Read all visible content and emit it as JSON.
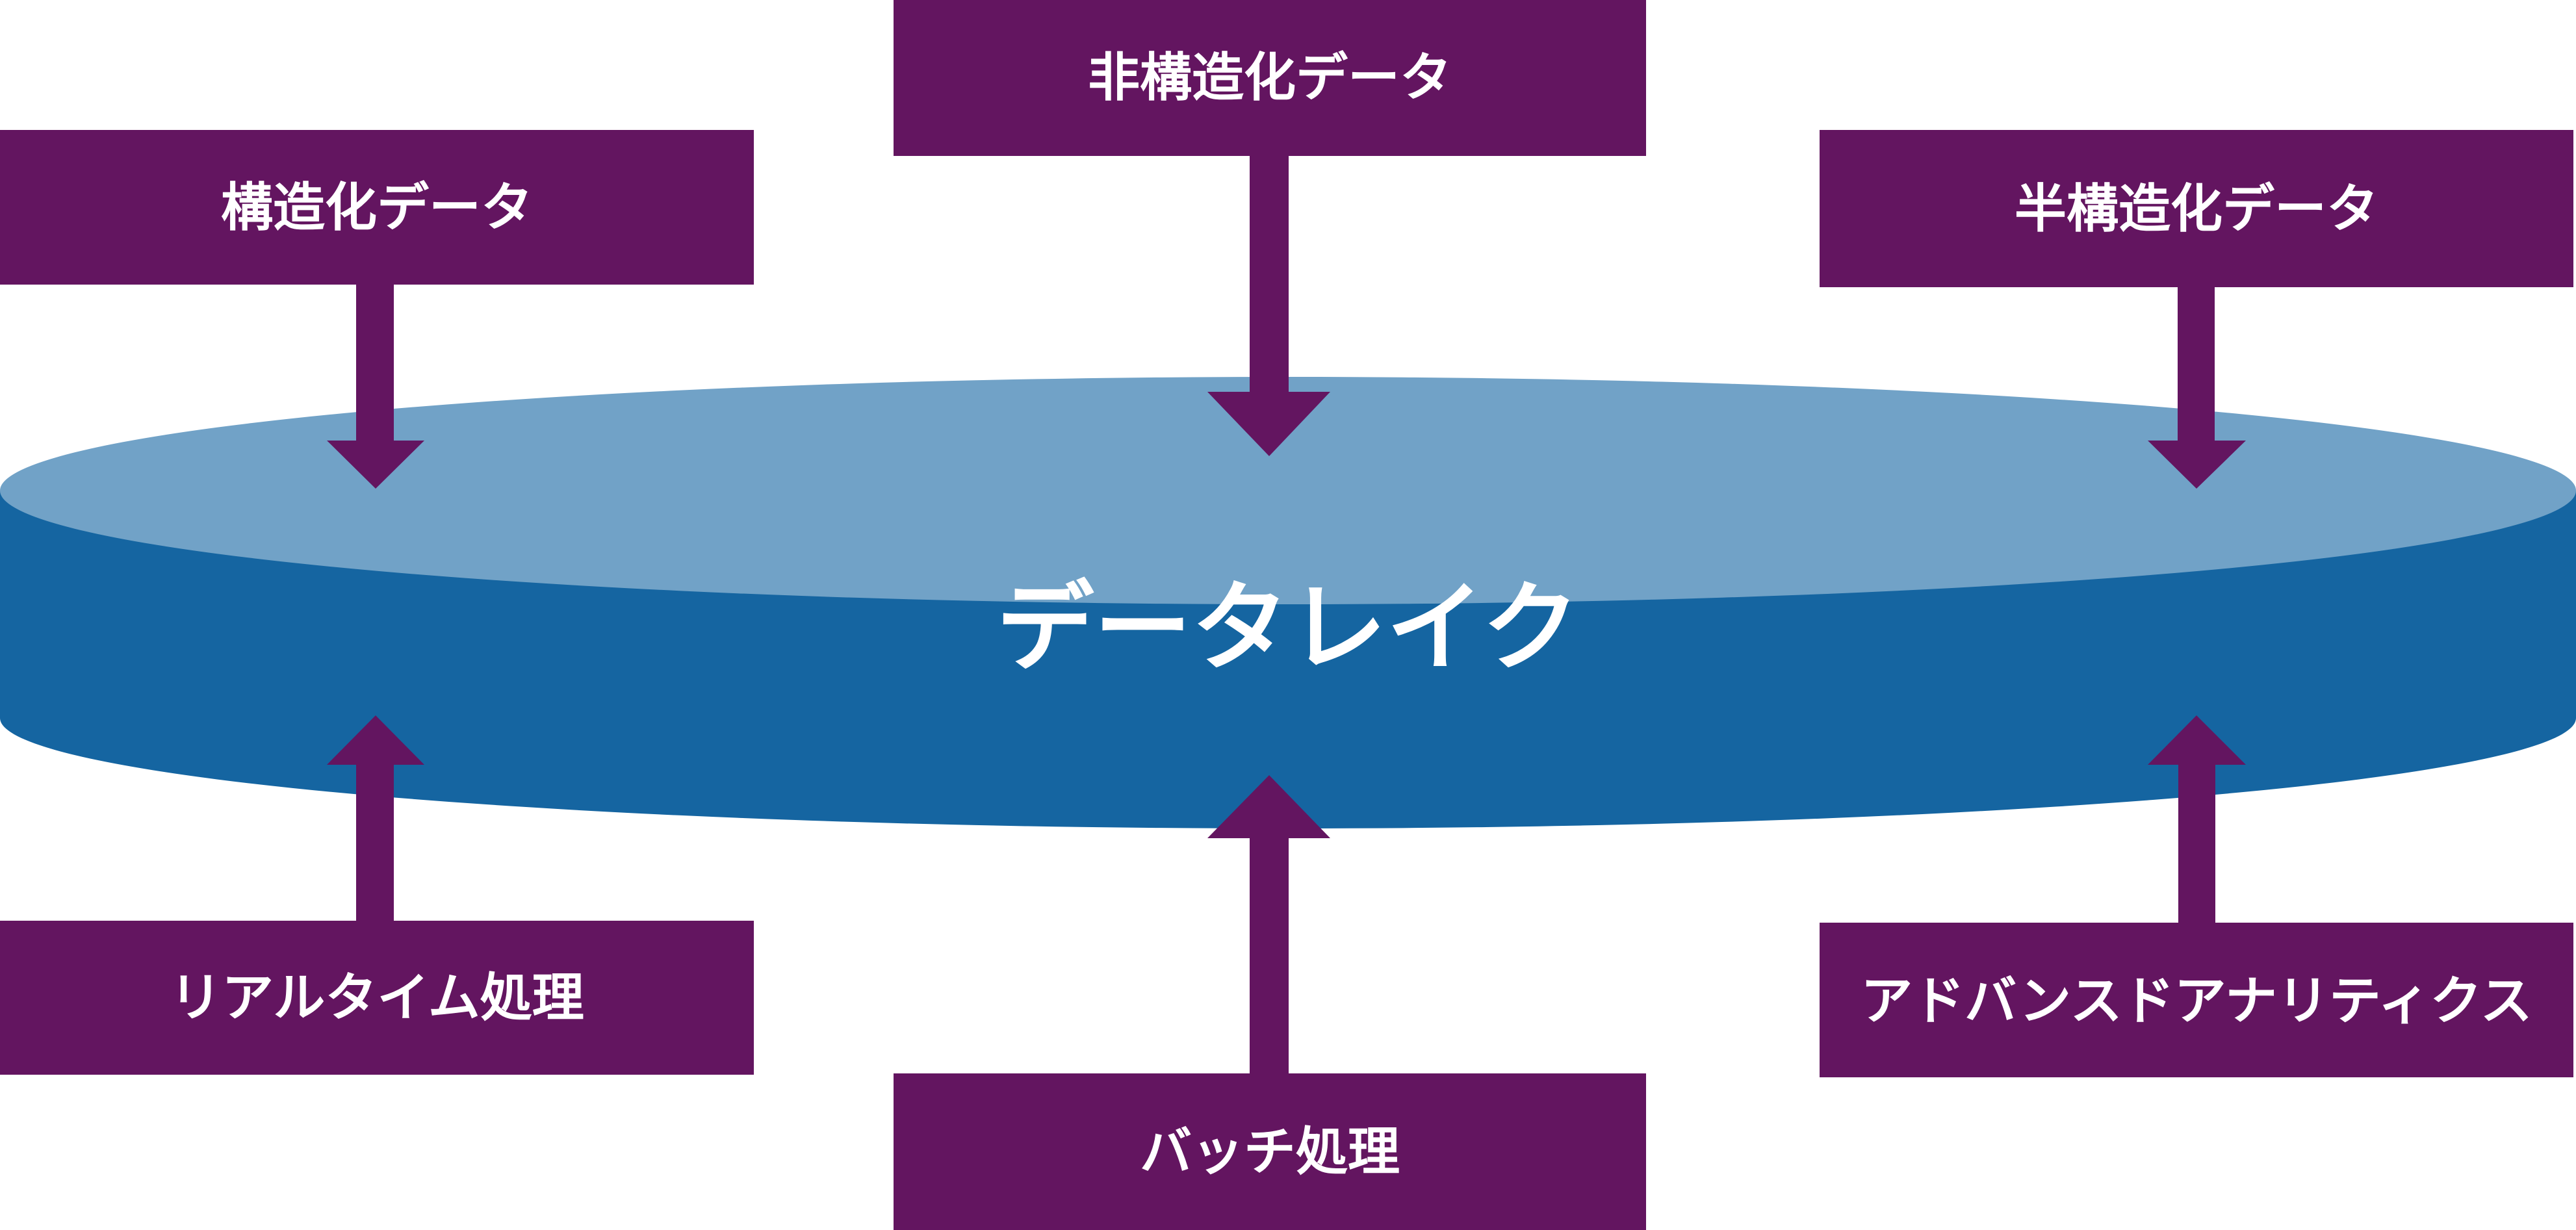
{
  "colors": {
    "box_fill": "#631560",
    "arrow_fill": "#631560",
    "lake_top": "#71a2c7",
    "lake_side": "#1565a1",
    "label_text": "#ffffff",
    "background": "#ffffff"
  },
  "center": {
    "label": "データレイク"
  },
  "inputs": {
    "structured": "構造化データ",
    "unstructured": "非構造化データ",
    "semi_structured": "半構造化データ"
  },
  "outputs": {
    "realtime": "リアルタイム処理",
    "batch": "バッチ処理",
    "advanced_analytics": "アドバンスドアナリティクス"
  }
}
